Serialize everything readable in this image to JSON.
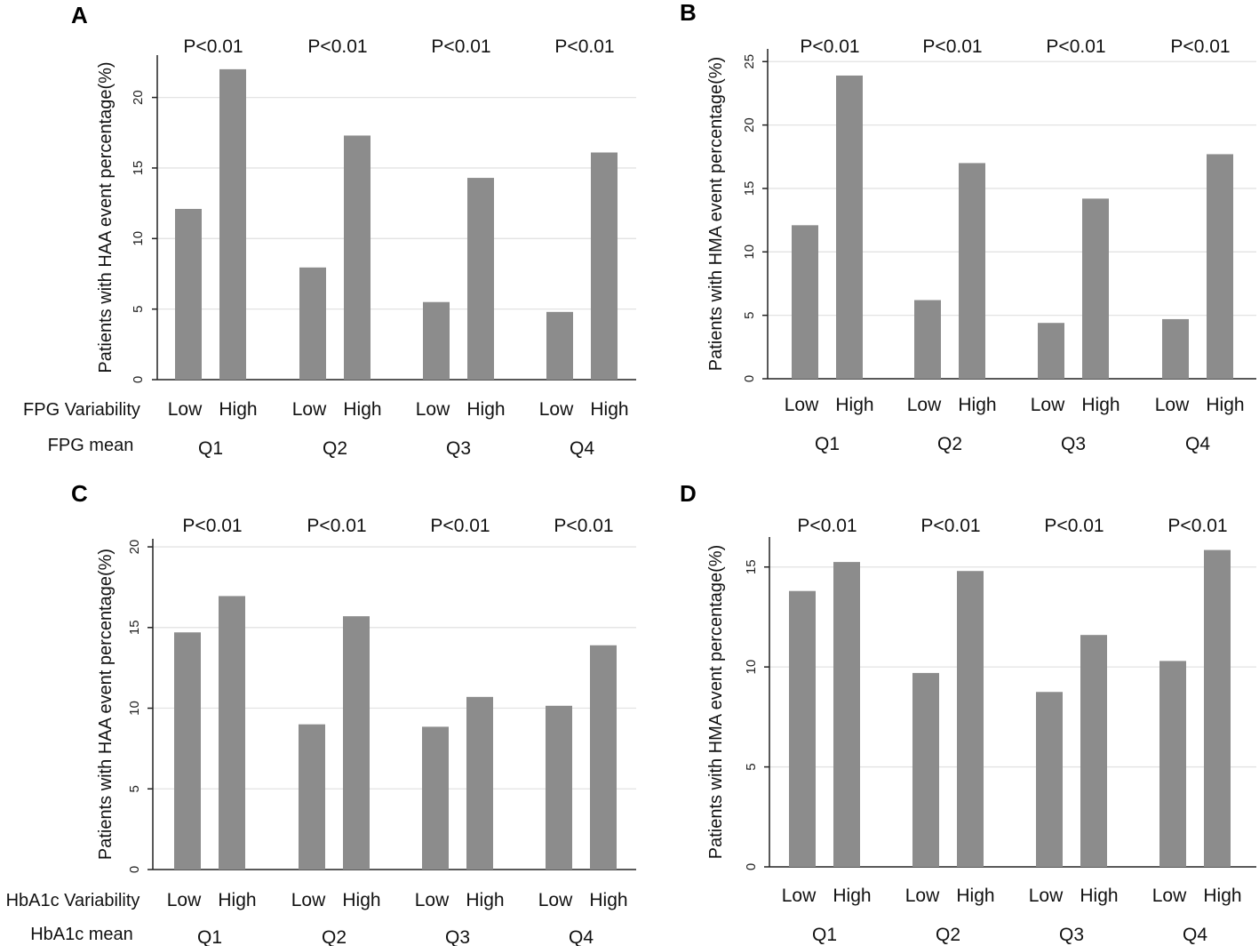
{
  "chart_data": [
    {
      "panel": "A",
      "type": "bar",
      "ylabel": "Patients with HAA event percentage(%)",
      "ylim": [
        0,
        23
      ],
      "yticks": [
        0,
        5,
        10,
        15,
        20
      ],
      "row_labels": {
        "variability": "FPG Variability",
        "mean": "FPG mean"
      },
      "groups": [
        {
          "quartile": "Q1",
          "pvalue": "P<0.01",
          "bars": [
            {
              "label": "Low",
              "value": 12.1
            },
            {
              "label": "High",
              "value": 22.0
            }
          ]
        },
        {
          "quartile": "Q2",
          "pvalue": "P<0.01",
          "bars": [
            {
              "label": "Low",
              "value": 7.95
            },
            {
              "label": "High",
              "value": 17.3
            }
          ]
        },
        {
          "quartile": "Q3",
          "pvalue": "P<0.01",
          "bars": [
            {
              "label": "Low",
              "value": 5.5
            },
            {
              "label": "High",
              "value": 14.3
            }
          ]
        },
        {
          "quartile": "Q4",
          "pvalue": "P<0.01",
          "bars": [
            {
              "label": "Low",
              "value": 4.8
            },
            {
              "label": "High",
              "value": 16.1
            }
          ]
        }
      ]
    },
    {
      "panel": "B",
      "type": "bar",
      "ylabel": "Patients with HMA event percentage(%)",
      "ylim": [
        0,
        26
      ],
      "yticks": [
        0,
        5,
        10,
        15,
        20,
        25
      ],
      "row_labels": {
        "variability": "",
        "mean": ""
      },
      "groups": [
        {
          "quartile": "Q1",
          "pvalue": "P<0.01",
          "bars": [
            {
              "label": "Low",
              "value": 12.1
            },
            {
              "label": "High",
              "value": 23.9
            }
          ]
        },
        {
          "quartile": "Q2",
          "pvalue": "P<0.01",
          "bars": [
            {
              "label": "Low",
              "value": 6.2
            },
            {
              "label": "High",
              "value": 17.0
            }
          ]
        },
        {
          "quartile": "Q3",
          "pvalue": "P<0.01",
          "bars": [
            {
              "label": "Low",
              "value": 4.4
            },
            {
              "label": "High",
              "value": 14.2
            }
          ]
        },
        {
          "quartile": "Q4",
          "pvalue": "P<0.01",
          "bars": [
            {
              "label": "Low",
              "value": 4.7
            },
            {
              "label": "High",
              "value": 17.7
            }
          ]
        }
      ]
    },
    {
      "panel": "C",
      "type": "bar",
      "ylabel": "Patients with HAA event percentage(%)",
      "ylim": [
        0,
        20.5
      ],
      "yticks": [
        0,
        5,
        10,
        15,
        20
      ],
      "row_labels": {
        "variability": "HbA1c  Variability",
        "mean": "HbA1c  mean"
      },
      "groups": [
        {
          "quartile": "Q1",
          "pvalue": "P<0.01",
          "bars": [
            {
              "label": "Low",
              "value": 14.7
            },
            {
              "label": "High",
              "value": 16.95
            }
          ]
        },
        {
          "quartile": "Q2",
          "pvalue": "P<0.01",
          "bars": [
            {
              "label": "Low",
              "value": 9.0
            },
            {
              "label": "High",
              "value": 15.7
            }
          ]
        },
        {
          "quartile": "Q3",
          "pvalue": "P<0.01",
          "bars": [
            {
              "label": "Low",
              "value": 8.85
            },
            {
              "label": "High",
              "value": 10.7
            }
          ]
        },
        {
          "quartile": "Q4",
          "pvalue": "P<0.01",
          "bars": [
            {
              "label": "Low",
              "value": 10.15
            },
            {
              "label": "High",
              "value": 13.9
            }
          ]
        }
      ]
    },
    {
      "panel": "D",
      "type": "bar",
      "ylabel": "Patients with HMA event percentage(%)",
      "ylim": [
        0,
        16.5
      ],
      "yticks": [
        0,
        5,
        10,
        15
      ],
      "row_labels": {
        "variability": "",
        "mean": ""
      },
      "groups": [
        {
          "quartile": "Q1",
          "pvalue": "P<0.01",
          "bars": [
            {
              "label": "Low",
              "value": 13.8
            },
            {
              "label": "High",
              "value": 15.25
            }
          ]
        },
        {
          "quartile": "Q2",
          "pvalue": "P<0.01",
          "bars": [
            {
              "label": "Low",
              "value": 9.7
            },
            {
              "label": "High",
              "value": 14.8
            }
          ]
        },
        {
          "quartile": "Q3",
          "pvalue": "P<0.01",
          "bars": [
            {
              "label": "Low",
              "value": 8.75
            },
            {
              "label": "High",
              "value": 11.6
            }
          ]
        },
        {
          "quartile": "Q4",
          "pvalue": "P<0.01",
          "bars": [
            {
              "label": "Low",
              "value": 10.3
            },
            {
              "label": "High",
              "value": 15.85
            }
          ]
        }
      ]
    }
  ],
  "colors": {
    "bar": "#8c8c8c",
    "grid": "#e3e3e3",
    "axis": "#222222"
  }
}
